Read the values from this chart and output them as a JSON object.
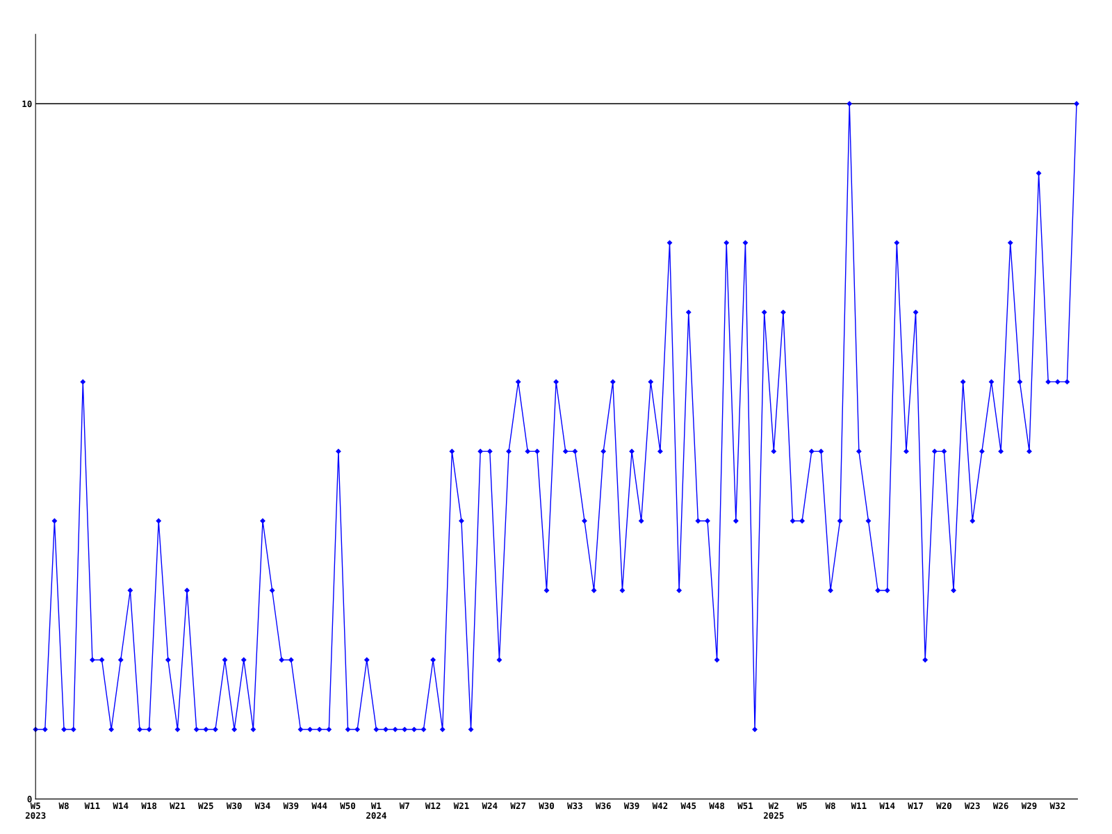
{
  "chart_data": {
    "type": "line",
    "categories": [
      "W5\n2023",
      null,
      null,
      "W8",
      null,
      null,
      "W11",
      null,
      null,
      "W14",
      null,
      null,
      "W18",
      null,
      null,
      "W21",
      null,
      null,
      "W25",
      null,
      null,
      "W30",
      null,
      null,
      "W34",
      null,
      null,
      "W39",
      null,
      null,
      "W44",
      null,
      null,
      "W50",
      null,
      null,
      "W1\n2024",
      null,
      null,
      "W7",
      null,
      null,
      "W12",
      null,
      null,
      "W21",
      null,
      null,
      "W24",
      null,
      null,
      "W27",
      null,
      null,
      "W30",
      null,
      null,
      "W33",
      null,
      null,
      "W36",
      null,
      null,
      "W39",
      null,
      null,
      "W42",
      null,
      null,
      "W45",
      null,
      null,
      "W48",
      null,
      null,
      "W51",
      null,
      null,
      "W2\n2025",
      null,
      null,
      "W5",
      null,
      null,
      "W8",
      null,
      null,
      "W11",
      null,
      null,
      "W14",
      null,
      null,
      "W17",
      null,
      null,
      "W20",
      null,
      null,
      "W23",
      null,
      null,
      "W26",
      null,
      null,
      "W29",
      null,
      null,
      "W32",
      null,
      null
    ],
    "series": [
      {
        "color": "#0000ff",
        "values": [
          1,
          1,
          4,
          1,
          1,
          6,
          2,
          2,
          1,
          2,
          3,
          1,
          1,
          4,
          2,
          1,
          3,
          1,
          1,
          1,
          2,
          1,
          2,
          1,
          4,
          3,
          2,
          2,
          1,
          1,
          1,
          1,
          5,
          1,
          1,
          2,
          1,
          1,
          1,
          1,
          1,
          1,
          2,
          1,
          5,
          4,
          1,
          5,
          5,
          2,
          5,
          6,
          5,
          5,
          3,
          6,
          5,
          5,
          4,
          3,
          5,
          6,
          3,
          5,
          4,
          6,
          5,
          8,
          3,
          7,
          4,
          4,
          2,
          8,
          4,
          8,
          1,
          7,
          5,
          7,
          4,
          4,
          5,
          5,
          3,
          4,
          10,
          5,
          4,
          3,
          3,
          8,
          5,
          7,
          2,
          5,
          5,
          3,
          6,
          4,
          5,
          6,
          5,
          8,
          6,
          5,
          9,
          6,
          6,
          6,
          10
        ]
      }
    ],
    "ylim": [
      0,
      11
    ],
    "yticks": [
      0,
      10
    ],
    "grid": "y",
    "marker": "diamond",
    "line_style": "solid",
    "legend": false
  }
}
